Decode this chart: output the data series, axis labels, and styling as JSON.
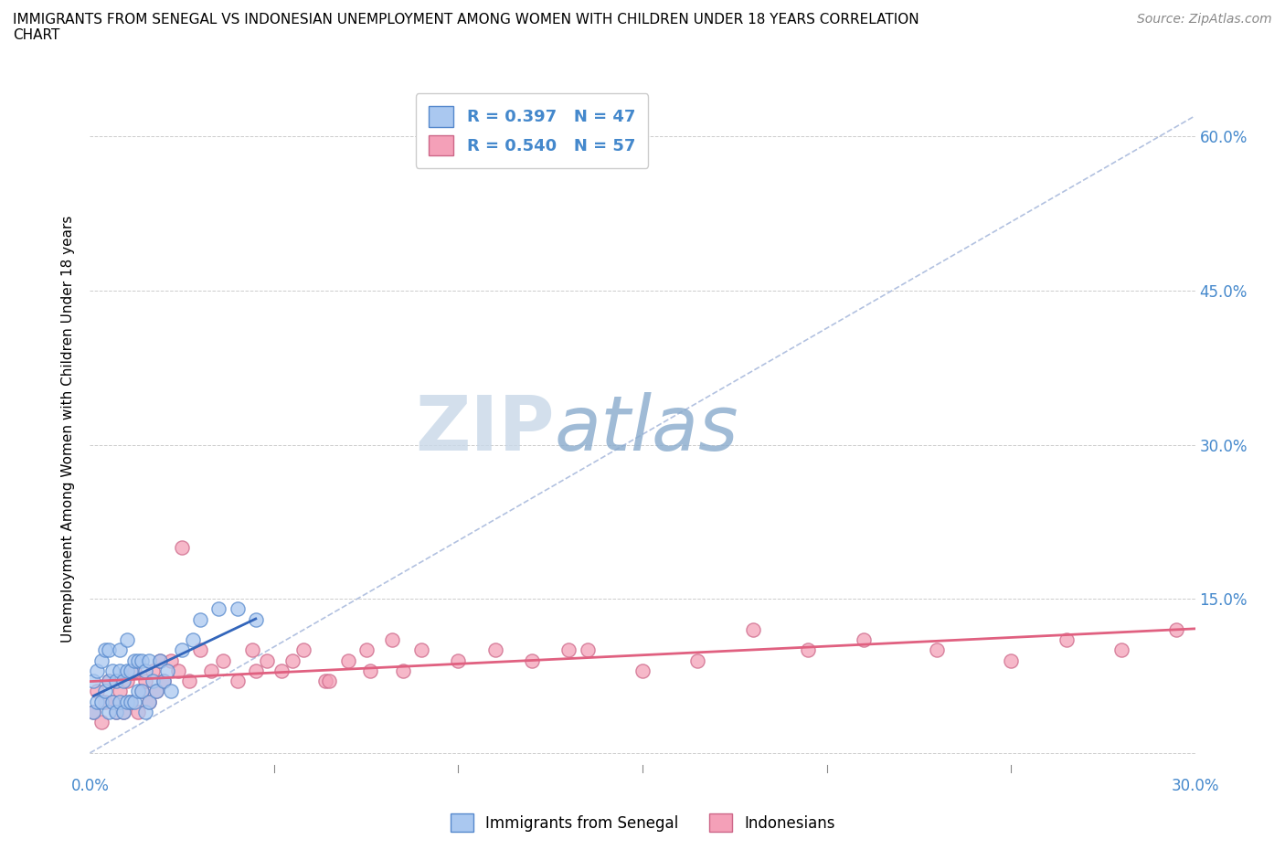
{
  "title_line1": "IMMIGRANTS FROM SENEGAL VS INDONESIAN UNEMPLOYMENT AMONG WOMEN WITH CHILDREN UNDER 18 YEARS CORRELATION",
  "title_line2": "CHART",
  "source": "Source: ZipAtlas.com",
  "ylabel": "Unemployment Among Women with Children Under 18 years",
  "legend_r1": "R = 0.397",
  "legend_n1": "N = 47",
  "legend_r2": "R = 0.540",
  "legend_n2": "N = 57",
  "color_blue": "#aac8f0",
  "color_pink": "#f4a0b8",
  "edge_color_blue": "#5588cc",
  "edge_color_pink": "#cc6688",
  "trend_line_blue_color": "#3366bb",
  "trend_line_pink_color": "#e06080",
  "diagonal_line_color": "#aabbdd",
  "axis_label_color": "#4488cc",
  "watermark_zip": "ZIP",
  "watermark_atlas": "atlas",
  "xmin": 0.0,
  "xmax": 0.3,
  "ymin": -0.02,
  "ymax": 0.65,
  "ytick_positions": [
    0.0,
    0.15,
    0.3,
    0.45,
    0.6
  ],
  "ytick_labels": [
    "",
    "15.0%",
    "30.0%",
    "45.0%",
    "60.0%"
  ],
  "senegal_x": [
    0.001,
    0.001,
    0.002,
    0.002,
    0.003,
    0.003,
    0.004,
    0.004,
    0.005,
    0.005,
    0.005,
    0.006,
    0.006,
    0.007,
    0.007,
    0.008,
    0.008,
    0.008,
    0.009,
    0.009,
    0.01,
    0.01,
    0.01,
    0.011,
    0.011,
    0.012,
    0.012,
    0.013,
    0.013,
    0.014,
    0.014,
    0.015,
    0.015,
    0.016,
    0.016,
    0.017,
    0.018,
    0.019,
    0.02,
    0.021,
    0.022,
    0.025,
    0.028,
    0.03,
    0.035,
    0.04,
    0.045
  ],
  "senegal_y": [
    0.04,
    0.07,
    0.05,
    0.08,
    0.05,
    0.09,
    0.06,
    0.1,
    0.04,
    0.07,
    0.1,
    0.05,
    0.08,
    0.04,
    0.07,
    0.05,
    0.08,
    0.1,
    0.04,
    0.07,
    0.05,
    0.08,
    0.11,
    0.05,
    0.08,
    0.05,
    0.09,
    0.06,
    0.09,
    0.06,
    0.09,
    0.04,
    0.08,
    0.05,
    0.09,
    0.07,
    0.06,
    0.09,
    0.07,
    0.08,
    0.06,
    0.1,
    0.11,
    0.13,
    0.14,
    0.14,
    0.13
  ],
  "indonesian_x": [
    0.001,
    0.002,
    0.003,
    0.004,
    0.005,
    0.006,
    0.007,
    0.008,
    0.009,
    0.01,
    0.011,
    0.012,
    0.013,
    0.014,
    0.015,
    0.016,
    0.017,
    0.018,
    0.019,
    0.02,
    0.022,
    0.024,
    0.025,
    0.027,
    0.03,
    0.033,
    0.036,
    0.04,
    0.044,
    0.048,
    0.052,
    0.058,
    0.064,
    0.07,
    0.076,
    0.082,
    0.09,
    0.1,
    0.11,
    0.12,
    0.135,
    0.15,
    0.165,
    0.18,
    0.195,
    0.21,
    0.23,
    0.25,
    0.265,
    0.28,
    0.295,
    0.13,
    0.075,
    0.045,
    0.055,
    0.065,
    0.085
  ],
  "indonesian_y": [
    0.04,
    0.06,
    0.03,
    0.05,
    0.07,
    0.05,
    0.04,
    0.06,
    0.04,
    0.07,
    0.05,
    0.08,
    0.04,
    0.06,
    0.07,
    0.05,
    0.08,
    0.06,
    0.09,
    0.07,
    0.09,
    0.08,
    0.2,
    0.07,
    0.1,
    0.08,
    0.09,
    0.07,
    0.1,
    0.09,
    0.08,
    0.1,
    0.07,
    0.09,
    0.08,
    0.11,
    0.1,
    0.09,
    0.1,
    0.09,
    0.1,
    0.08,
    0.09,
    0.12,
    0.1,
    0.11,
    0.1,
    0.09,
    0.11,
    0.1,
    0.12,
    0.1,
    0.1,
    0.08,
    0.09,
    0.07,
    0.08
  ]
}
